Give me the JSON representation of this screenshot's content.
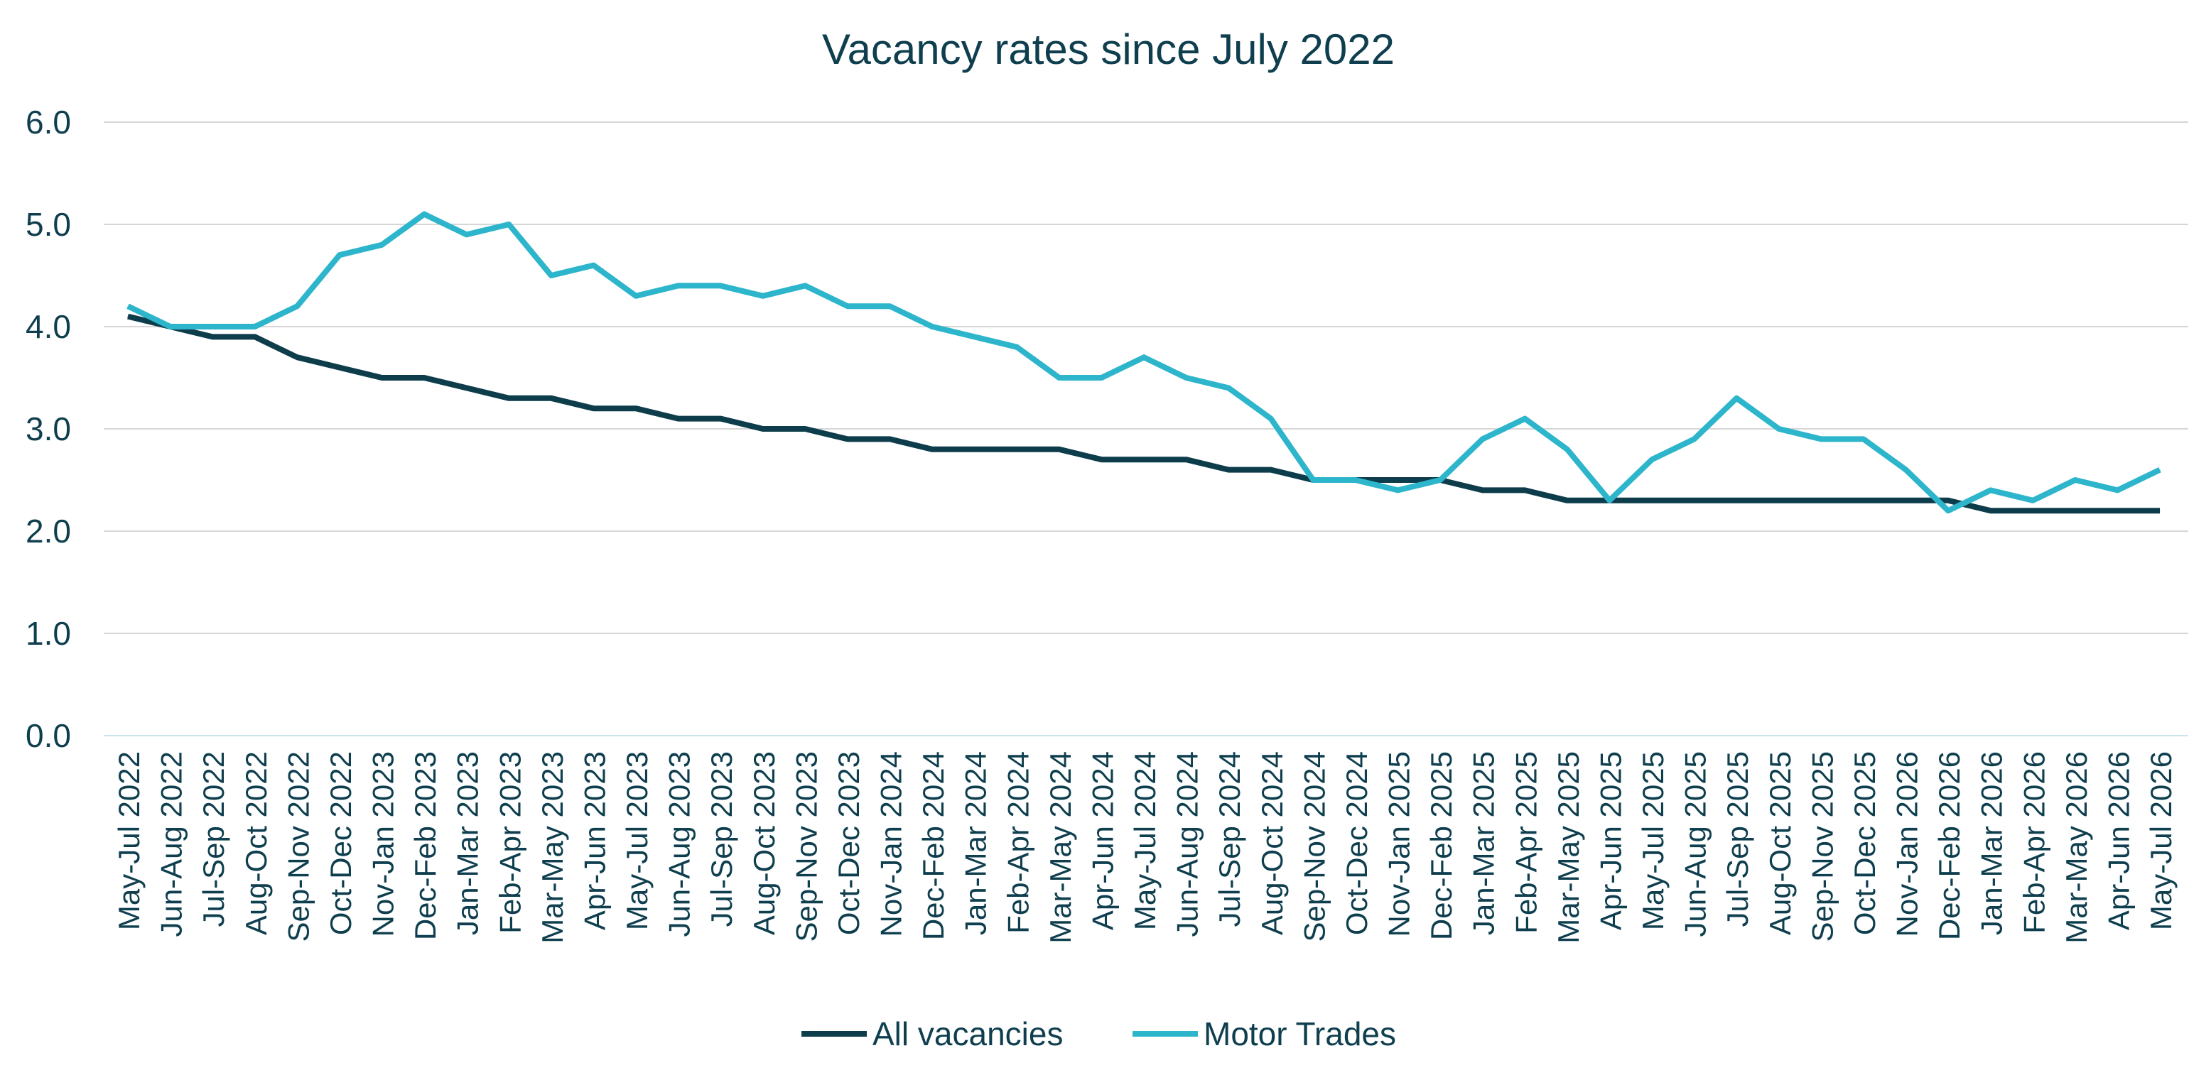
{
  "chart_data": {
    "type": "line",
    "title": "Vacancy rates since July 2022",
    "xlabel": "",
    "ylabel": "",
    "ylim": [
      0,
      6
    ],
    "y_ticks": [
      "0.0",
      "1.0",
      "2.0",
      "3.0",
      "4.0",
      "5.0",
      "6.0"
    ],
    "grid": true,
    "legend_position": "bottom",
    "categories": [
      "May-Jul 2022",
      "Jun-Aug 2022",
      "Jul-Sep 2022",
      "Aug-Oct 2022",
      "Sep-Nov 2022",
      "Oct-Dec 2022",
      "Nov-Jan 2023",
      "Dec-Feb 2023",
      "Jan-Mar 2023",
      "Feb-Apr 2023",
      "Mar-May 2023",
      "Apr-Jun 2023",
      "May-Jul 2023",
      "Jun-Aug 2023",
      "Jul-Sep 2023",
      "Aug-Oct 2023",
      "Sep-Nov 2023",
      "Oct-Dec 2023",
      "Nov-Jan 2024",
      "Dec-Feb 2024",
      "Jan-Mar 2024",
      "Feb-Apr 2024",
      "Mar-May 2024",
      "Apr-Jun 2024",
      "May-Jul 2024",
      "Jun-Aug 2024",
      "Jul-Sep 2024",
      "Aug-Oct 2024",
      "Sep-Nov 2024",
      "Oct-Dec 2024",
      "Nov-Jan 2025",
      "Dec-Feb 2025",
      "Jan-Mar 2025",
      "Feb-Apr 2025",
      "Mar-May 2025",
      "Apr-Jun 2025",
      "May-Jul 2025",
      "Jun-Aug 2025",
      "Jul-Sep 2025",
      "Aug-Oct 2025",
      "Sep-Nov 2025",
      "Oct-Dec 2025",
      "Nov-Jan 2026",
      "Dec-Feb 2026",
      "Jan-Mar 2026",
      "Feb-Apr 2026",
      "Mar-May 2026",
      "Apr-Jun 2026",
      "May-Jul 2026"
    ],
    "series": [
      {
        "name": "All vacancies",
        "color": "#0d3c4b",
        "values": [
          4.1,
          4.0,
          3.9,
          3.9,
          3.7,
          3.6,
          3.5,
          3.5,
          3.4,
          3.3,
          3.3,
          3.2,
          3.2,
          3.1,
          3.1,
          3.0,
          3.0,
          2.9,
          2.9,
          2.8,
          2.8,
          2.8,
          2.8,
          2.7,
          2.7,
          2.7,
          2.6,
          2.6,
          2.5,
          2.5,
          2.5,
          2.5,
          2.4,
          2.4,
          2.3,
          2.3,
          2.3,
          2.3,
          2.3,
          2.3,
          2.3,
          2.3,
          2.3,
          2.3,
          2.2,
          2.2,
          2.2,
          2.2,
          2.2
        ]
      },
      {
        "name": "Motor Trades",
        "color": "#2db5cc",
        "values": [
          4.2,
          4.0,
          4.0,
          4.0,
          4.2,
          4.7,
          4.8,
          5.1,
          4.9,
          5.0,
          4.5,
          4.6,
          4.3,
          4.4,
          4.4,
          4.3,
          4.4,
          4.2,
          4.2,
          4.0,
          3.9,
          3.8,
          3.5,
          3.5,
          3.7,
          3.5,
          3.4,
          3.1,
          2.5,
          2.5,
          2.4,
          2.5,
          2.9,
          3.1,
          2.8,
          2.3,
          2.7,
          2.9,
          3.3,
          3.0,
          2.9,
          2.9,
          2.6,
          2.2,
          2.4,
          2.3,
          2.5,
          2.4,
          2.6
        ]
      }
    ]
  }
}
